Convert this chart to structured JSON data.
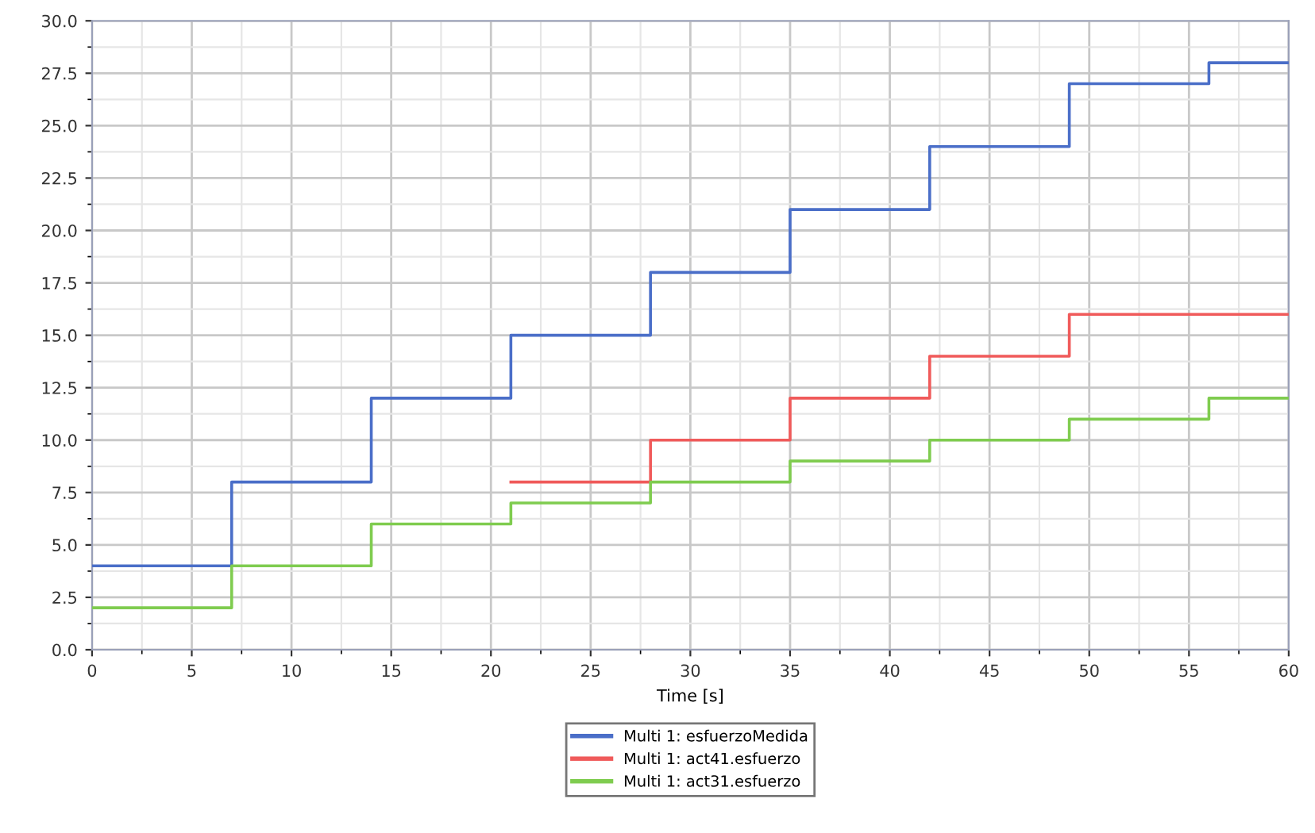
{
  "chart_data": {
    "type": "step",
    "xlabel": "Time [s]",
    "x": [
      0,
      7,
      14,
      21,
      28,
      35,
      42,
      49,
      56,
      60
    ],
    "series": [
      {
        "name": "Multi 1: esfuerzoMedida",
        "color": "#4a6ec8",
        "values": [
          4,
          8,
          12,
          15,
          18,
          21,
          24,
          27,
          28,
          28
        ]
      },
      {
        "name": "Multi 1: act41.esfuerzo",
        "color": "#f05a5a",
        "values": [
          null,
          null,
          null,
          8,
          10,
          12,
          14,
          16,
          16,
          16
        ]
      },
      {
        "name": "Multi 1: act31.esfuerzo",
        "color": "#7fcc4f",
        "values": [
          2,
          4,
          6,
          7,
          8,
          9,
          10,
          11,
          12,
          12
        ]
      }
    ],
    "xlim": [
      0,
      60
    ],
    "xticks": [
      0,
      5,
      10,
      15,
      20,
      25,
      30,
      35,
      40,
      45,
      50,
      55,
      60
    ],
    "ylim": [
      0,
      30
    ],
    "yticks": [
      {
        "value": 0,
        "label": "0.0"
      },
      {
        "value": 2.5,
        "label": "2.5"
      },
      {
        "value": 5,
        "label": "5.0"
      },
      {
        "value": 7.5,
        "label": "7.5"
      },
      {
        "value": 10,
        "label": "10.0"
      },
      {
        "value": 12.5,
        "label": "12.5"
      },
      {
        "value": 15,
        "label": "15.0"
      },
      {
        "value": 17.5,
        "label": "17.5"
      },
      {
        "value": 20,
        "label": "20.0"
      },
      {
        "value": 22.5,
        "label": "22.5"
      },
      {
        "value": 25,
        "label": "25.0"
      },
      {
        "value": 27.5,
        "label": "27.5"
      },
      {
        "value": 30,
        "label": "30.0"
      }
    ],
    "grid": true,
    "legend": "bottom",
    "line_style": "solid",
    "marker": "none"
  }
}
